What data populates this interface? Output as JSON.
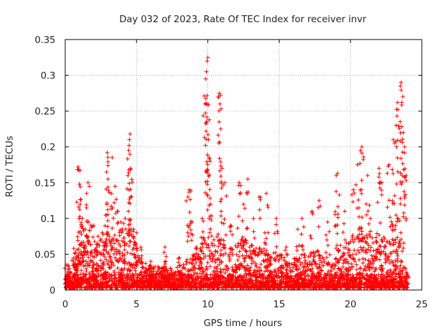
{
  "chart_data": {
    "type": "scatter",
    "title": "Day 032 of 2023, Rate Of TEC Index for receiver invr",
    "xlabel": "GPS time / hours",
    "ylabel": "ROTI / TECUs",
    "xlim": [
      0,
      25
    ],
    "ylim": [
      0,
      0.35
    ],
    "xticks": [
      "0",
      "5",
      "10",
      "15",
      "20",
      "25"
    ],
    "yticks": [
      "0",
      "0.05",
      "0.1",
      "0.15",
      "0.2",
      "0.25",
      "0.3",
      "0.35"
    ],
    "grid": true,
    "marker": "+",
    "colors": {
      "series": "#ff0000",
      "grid": "#999999",
      "axes": "#000000"
    },
    "series": [
      {
        "name": "",
        "points": [
          [
            0.1,
            0.035
          ],
          [
            0.3,
            0.03
          ],
          [
            0.6,
            0.058
          ],
          [
            0.8,
            0.045
          ],
          [
            0.9,
            0.172
          ],
          [
            0.95,
            0.168
          ],
          [
            1.0,
            0.148
          ],
          [
            1.05,
            0.12
          ],
          [
            1.2,
            0.1
          ],
          [
            1.4,
            0.085
          ],
          [
            1.5,
            0.135
          ],
          [
            1.6,
            0.15
          ],
          [
            1.7,
            0.145
          ],
          [
            2.0,
            0.09
          ],
          [
            2.3,
            0.075
          ],
          [
            2.6,
            0.08
          ],
          [
            2.9,
            0.165
          ],
          [
            2.95,
            0.192
          ],
          [
            3.0,
            0.155
          ],
          [
            3.3,
            0.185
          ],
          [
            3.5,
            0.145
          ],
          [
            3.7,
            0.11
          ],
          [
            3.9,
            0.095
          ],
          [
            4.2,
            0.1
          ],
          [
            4.4,
            0.16
          ],
          [
            4.45,
            0.195
          ],
          [
            4.5,
            0.21
          ],
          [
            4.55,
            0.218
          ],
          [
            4.6,
            0.17
          ],
          [
            4.8,
            0.085
          ],
          [
            5.0,
            0.08
          ],
          [
            5.3,
            0.06
          ],
          [
            6.0,
            0.04
          ],
          [
            7.0,
            0.06
          ],
          [
            8.0,
            0.045
          ],
          [
            8.6,
            0.13
          ],
          [
            8.7,
            0.14
          ],
          [
            8.9,
            0.095
          ],
          [
            9.2,
            0.06
          ],
          [
            9.6,
            0.1
          ],
          [
            9.8,
            0.26
          ],
          [
            9.85,
            0.295
          ],
          [
            9.9,
            0.305
          ],
          [
            9.95,
            0.32
          ],
          [
            10.0,
            0.325
          ],
          [
            10.05,
            0.21
          ],
          [
            10.1,
            0.185
          ],
          [
            10.2,
            0.12
          ],
          [
            10.8,
            0.275
          ],
          [
            10.85,
            0.26
          ],
          [
            10.9,
            0.225
          ],
          [
            11.0,
            0.17
          ],
          [
            11.2,
            0.15
          ],
          [
            11.6,
            0.09
          ],
          [
            12.2,
            0.15
          ],
          [
            12.5,
            0.12
          ],
          [
            12.8,
            0.155
          ],
          [
            13.2,
            0.1
          ],
          [
            13.6,
            0.13
          ],
          [
            14.0,
            0.08
          ],
          [
            14.1,
            0.135
          ],
          [
            14.8,
            0.1
          ],
          [
            15.5,
            0.06
          ],
          [
            16.3,
            0.085
          ],
          [
            16.6,
            0.1
          ],
          [
            17.3,
            0.11
          ],
          [
            17.8,
            0.125
          ],
          [
            18.4,
            0.095
          ],
          [
            19.0,
            0.16
          ],
          [
            19.1,
            0.163
          ],
          [
            19.6,
            0.11
          ],
          [
            20.2,
            0.14
          ],
          [
            20.5,
            0.175
          ],
          [
            20.7,
            0.195
          ],
          [
            20.8,
            0.2
          ],
          [
            21.2,
            0.16
          ],
          [
            21.4,
            0.1
          ],
          [
            22.0,
            0.17
          ],
          [
            22.2,
            0.15
          ],
          [
            22.7,
            0.175
          ],
          [
            23.0,
            0.21
          ],
          [
            23.2,
            0.23
          ],
          [
            23.3,
            0.262
          ],
          [
            23.5,
            0.285
          ],
          [
            23.55,
            0.29
          ],
          [
            23.6,
            0.262
          ],
          [
            23.7,
            0.22
          ],
          [
            23.8,
            0.2
          ],
          [
            23.9,
            0.16
          ],
          [
            24.0,
            0.02
          ]
        ]
      }
    ],
    "density": [
      [
        0.0,
        0.03
      ],
      [
        0.5,
        0.04
      ],
      [
        1.0,
        0.06
      ],
      [
        1.5,
        0.07
      ],
      [
        2.0,
        0.06
      ],
      [
        2.5,
        0.07
      ],
      [
        3.0,
        0.09
      ],
      [
        3.5,
        0.08
      ],
      [
        4.0,
        0.08
      ],
      [
        4.5,
        0.09
      ],
      [
        5.0,
        0.06
      ],
      [
        5.5,
        0.04
      ],
      [
        6.0,
        0.03
      ],
      [
        6.5,
        0.03
      ],
      [
        7.0,
        0.03
      ],
      [
        7.5,
        0.03
      ],
      [
        8.0,
        0.03
      ],
      [
        8.5,
        0.04
      ],
      [
        9.0,
        0.05
      ],
      [
        9.5,
        0.07
      ],
      [
        10.0,
        0.08
      ],
      [
        10.5,
        0.08
      ],
      [
        11.0,
        0.07
      ],
      [
        11.5,
        0.06
      ],
      [
        12.0,
        0.06
      ],
      [
        12.5,
        0.07
      ],
      [
        13.0,
        0.06
      ],
      [
        13.5,
        0.06
      ],
      [
        14.0,
        0.05
      ],
      [
        14.5,
        0.05
      ],
      [
        15.0,
        0.05
      ],
      [
        15.5,
        0.04
      ],
      [
        16.0,
        0.04
      ],
      [
        16.5,
        0.05
      ],
      [
        17.0,
        0.05
      ],
      [
        17.5,
        0.05
      ],
      [
        18.0,
        0.05
      ],
      [
        18.5,
        0.05
      ],
      [
        19.0,
        0.06
      ],
      [
        19.5,
        0.06
      ],
      [
        20.0,
        0.07
      ],
      [
        20.5,
        0.09
      ],
      [
        21.0,
        0.08
      ],
      [
        21.5,
        0.07
      ],
      [
        22.0,
        0.08
      ],
      [
        22.5,
        0.08
      ],
      [
        23.0,
        0.1
      ],
      [
        23.5,
        0.11
      ],
      [
        24.0,
        0.02
      ]
    ]
  }
}
